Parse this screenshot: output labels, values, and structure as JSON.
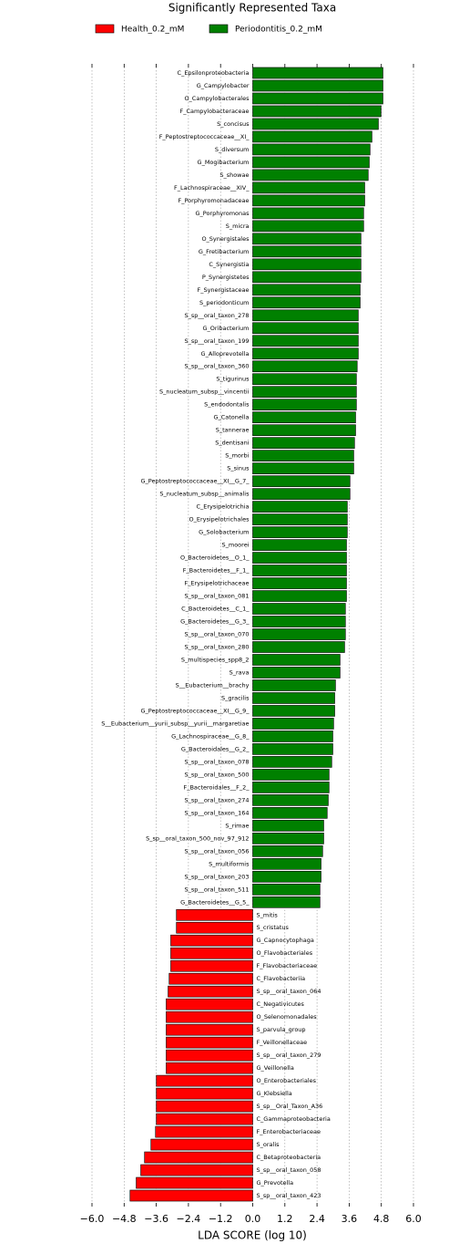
{
  "chart_data": {
    "type": "hbar",
    "title": "Significantly Represented Taxa",
    "xlabel": "LDA SCORE (log 10)",
    "categories": [
      "C_Epsilonproteobacteria",
      "G_Campylobacter",
      "O_Campylobacterales",
      "F_Campylobacteraceae",
      "S_concisus",
      "F_Peptostreptococcaceae__XI_",
      "S_diversum",
      "G_Mogibacterium",
      "S_showae",
      "F_Lachnospiraceae__XIV_",
      "F_Porphyromonadaceae",
      "G_Porphyromonas",
      "S_micra",
      "O_Synergistales",
      "G_Fretibacterium",
      "C_Synergistia",
      "P_Synergistetes",
      "F_Synergistaceae",
      "S_periodonticum",
      "S_sp__oral_taxon_278",
      "G_Oribacterium",
      "S_sp__oral_taxon_199",
      "G_Alloprevotella",
      "S_sp__oral_taxon_360",
      "S_tigurinus",
      "S_nucleatum_subsp__vincentii",
      "S_endodontalis",
      "G_Catonella",
      "S_tannerae",
      "S_dentisani",
      "S_morbi",
      "S_sinus",
      "G_Peptostreptococcaceae__XI__G_7_",
      "S_nucleatum_subsp__animalis",
      "C_Erysipelotrichia",
      "O_Erysipelotrichales",
      "G_Solobacterium",
      "S_moorei",
      "O_Bacteroidetes__O_1_",
      "F_Bacteroidetes__F_1_",
      "F_Erysipelotrichaceae",
      "S_sp__oral_taxon_081",
      "C_Bacteroidetes__C_1_",
      "G_Bacteroidetes__G_3_",
      "S_sp__oral_taxon_070",
      "S_sp__oral_taxon_280",
      "S_multispecies_spp8_2",
      "S_rava",
      "S__Eubacterium__brachy",
      "S_gracilis",
      "G_Peptostreptococcaceae__XI__G_9_",
      "S__Eubacterium__yurii_subsp__yurii__margaretiae",
      "G_Lachnospiraceae__G_8_",
      "G_Bacteroidales__G_2_",
      "S_sp__oral_taxon_078",
      "S_sp__oral_taxon_500",
      "F_Bacteroidales__F_2_",
      "S_sp__oral_taxon_274",
      "S_sp__oral_taxon_164",
      "S_rimae",
      "S_sp__oral_taxon_500_nov_97_912",
      "S_sp__oral_taxon_056",
      "S_multiformis",
      "S_sp__oral_taxon_203",
      "S_sp__oral_taxon_511",
      "G_Bacteroidetes__G_5_",
      "S_mitis",
      "S_cristatus",
      "G_Capnocytophaga",
      "O_Flavobacteriales",
      "F_Flavobacteriaceae",
      "C_Flavobacteriia",
      "S_sp__oral_taxon_064",
      "C_Negativicutes",
      "O_Selenomonadales",
      "S_parvula_group",
      "F_Veillonellaceae",
      "S_sp__oral_taxon_279",
      "G_Veillonella",
      "O_Enterobacteriales",
      "G_Klebsiella",
      "S_sp__Oral_Taxon_A36",
      "C_Gammaproteobacteria",
      "F_Enterobacteriaceae",
      "S_oralis",
      "C_Betaproteobacteria",
      "S_sp__oral_taxon_058",
      "G_Prevotella",
      "S_sp__oral_taxon_423"
    ],
    "series": [
      {
        "name": "Health_0.2_mM",
        "color": "#ff0000",
        "values": [
          null,
          null,
          null,
          null,
          null,
          null,
          null,
          null,
          null,
          null,
          null,
          null,
          null,
          null,
          null,
          null,
          null,
          null,
          null,
          null,
          null,
          null,
          null,
          null,
          null,
          null,
          null,
          null,
          null,
          null,
          null,
          null,
          null,
          null,
          null,
          null,
          null,
          null,
          null,
          null,
          null,
          null,
          null,
          null,
          null,
          null,
          null,
          null,
          null,
          null,
          null,
          null,
          null,
          null,
          null,
          null,
          null,
          null,
          null,
          null,
          null,
          null,
          null,
          null,
          null,
          null,
          -2.85,
          -2.85,
          -3.06,
          -3.06,
          -3.06,
          -3.12,
          -3.16,
          -3.23,
          -3.23,
          -3.23,
          -3.23,
          -3.23,
          -3.23,
          -3.6,
          -3.6,
          -3.6,
          -3.6,
          -3.63,
          -3.8,
          -4.04,
          -4.18,
          -4.35,
          -4.58
        ]
      },
      {
        "name": "Periodontitis_0.2_mM",
        "color": "#008000",
        "values": [
          4.86,
          4.86,
          4.86,
          4.79,
          4.69,
          4.45,
          4.38,
          4.35,
          4.31,
          4.18,
          4.18,
          4.14,
          4.14,
          4.04,
          4.04,
          4.04,
          4.04,
          4.01,
          4.01,
          3.94,
          3.94,
          3.94,
          3.94,
          3.9,
          3.87,
          3.87,
          3.87,
          3.84,
          3.84,
          3.8,
          3.77,
          3.77,
          3.63,
          3.63,
          3.53,
          3.53,
          3.53,
          3.5,
          3.5,
          3.5,
          3.5,
          3.5,
          3.46,
          3.46,
          3.46,
          3.43,
          3.26,
          3.26,
          3.09,
          3.06,
          3.06,
          3.02,
          2.99,
          2.99,
          2.95,
          2.85,
          2.85,
          2.82,
          2.78,
          2.65,
          2.65,
          2.61,
          2.55,
          2.55,
          2.51,
          2.51,
          null,
          null,
          null,
          null,
          null,
          null,
          null,
          null,
          null,
          null,
          null,
          null,
          null,
          null,
          null,
          null,
          null,
          null,
          null,
          null,
          null,
          null,
          null
        ]
      }
    ],
    "xlim": [
      -6,
      6
    ],
    "xticks": [
      {
        "value": -6,
        "label": "−6.0"
      },
      {
        "value": -4.8,
        "label": "−4.8"
      },
      {
        "value": -3.6,
        "label": "−3.6"
      },
      {
        "value": -2.4,
        "label": "−2.4"
      },
      {
        "value": -1.2,
        "label": "−1.2"
      },
      {
        "value": 0,
        "label": "0.0"
      },
      1.2,
      2.4,
      3.6,
      4.8,
      {
        "value": 6,
        "label": "6.0"
      }
    ],
    "grid": true
  }
}
